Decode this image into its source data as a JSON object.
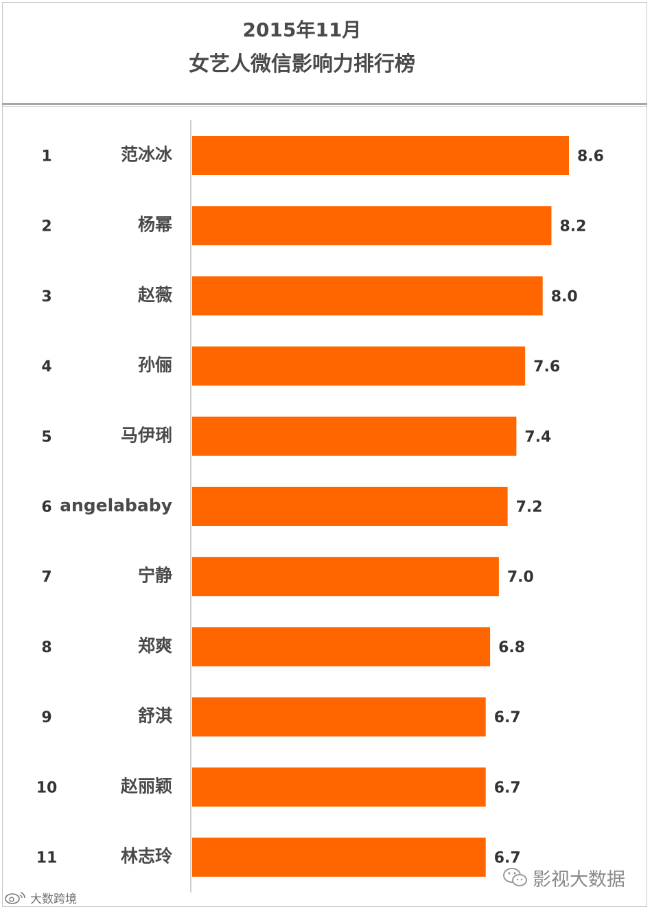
{
  "chart_data": {
    "type": "bar",
    "orientation": "horizontal",
    "title": "2015年11月",
    "subtitle": "女艺人微信影响力排行榜",
    "ranks": [
      "1",
      "2",
      "3",
      "4",
      "5",
      "6",
      "7",
      "8",
      "9",
      "10",
      "11"
    ],
    "categories": [
      "范冰冰",
      "杨幂",
      "赵薇",
      "孙俪",
      "马伊琍",
      "angelababy",
      "宁静",
      "郑爽",
      "舒淇",
      "赵丽颖",
      "林志玲"
    ],
    "values": [
      8.6,
      8.2,
      8.0,
      7.6,
      7.4,
      7.2,
      7.0,
      6.8,
      6.7,
      6.7,
      6.7
    ],
    "value_labels": [
      "8.6",
      "8.2",
      "8.0",
      "7.6",
      "7.4",
      "7.2",
      "7.0",
      "6.8",
      "6.7",
      "6.7",
      "6.7"
    ],
    "xlim": [
      0,
      8.6
    ],
    "bar_color": "#ff6600",
    "grid": false,
    "legend": "none"
  },
  "watermarks": {
    "right": "影视大数据",
    "left": "大数跨境"
  }
}
